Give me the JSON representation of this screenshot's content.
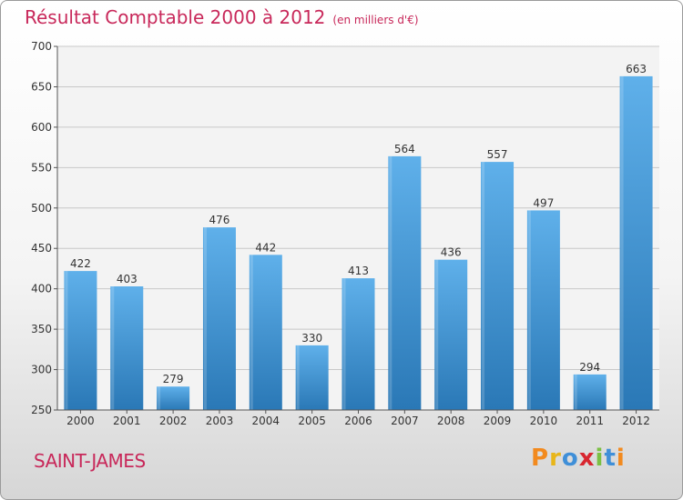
{
  "title": {
    "main": "Résultat Comptable 2000 à 2012",
    "unit": "(en milliers d'€)"
  },
  "location": "SAINT-JAMES",
  "brand": {
    "letters": [
      "P",
      "r",
      "o",
      "x",
      "i",
      "t",
      "i"
    ],
    "colors": [
      "#f28a1e",
      "#e8b61a",
      "#3f8fd8",
      "#d8262f",
      "#7bc043",
      "#3f8fd8",
      "#f28a1e"
    ]
  },
  "colors": {
    "title": "#c8285a",
    "bar_top": "#5fb0ea",
    "bar_bottom": "#2a78b6",
    "grid": "#c8c8c8"
  },
  "chart_data": {
    "type": "bar",
    "categories": [
      "2000",
      "2001",
      "2002",
      "2003",
      "2004",
      "2005",
      "2006",
      "2007",
      "2008",
      "2009",
      "2010",
      "2011",
      "2012"
    ],
    "values": [
      422,
      403,
      279,
      476,
      442,
      330,
      413,
      564,
      436,
      557,
      497,
      294,
      663
    ],
    "data_labels": [
      "422",
      "403",
      "279",
      "476",
      "442",
      "330",
      "413",
      "564",
      "436",
      "557",
      "497",
      "294",
      "663"
    ],
    "ylim": [
      250,
      700
    ],
    "yticks": [
      "250",
      "300",
      "350",
      "400",
      "450",
      "500",
      "550",
      "600",
      "650",
      "700"
    ],
    "grid": true,
    "xlabel": "",
    "ylabel": ""
  }
}
